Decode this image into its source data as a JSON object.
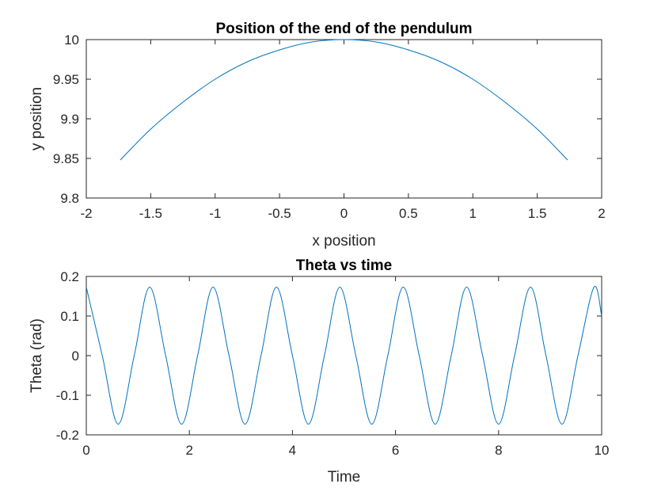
{
  "chart_data": [
    {
      "type": "line",
      "title": "Position of the end of the pendulum",
      "xlabel": "x position",
      "ylabel": "y position",
      "xlim": [
        -2,
        2
      ],
      "ylim": [
        9.8,
        10
      ],
      "x_ticks": [
        "-2",
        "-1.5",
        "-1",
        "-0.5",
        "0",
        "0.5",
        "1",
        "1.5",
        "2"
      ],
      "y_ticks": [
        "9.8",
        "9.85",
        "9.9",
        "9.95",
        "10"
      ],
      "grid": false,
      "color": "#0072BD",
      "series": [
        {
          "x": [
            -1.736,
            -1.5,
            -1.25,
            -1.0,
            -0.75,
            -0.5,
            -0.25,
            0,
            0.25,
            0.5,
            0.75,
            1.0,
            1.25,
            1.5,
            1.736
          ],
          "y": [
            9.848,
            9.887,
            9.921,
            9.95,
            9.972,
            9.987,
            9.997,
            10.0,
            9.997,
            9.987,
            9.972,
            9.95,
            9.921,
            9.887,
            9.848
          ]
        }
      ]
    },
    {
      "type": "line",
      "title": "Theta vs time",
      "xlabel": "Time",
      "ylabel": "Theta (rad)",
      "xlim": [
        0,
        10
      ],
      "ylim": [
        -0.2,
        0.2
      ],
      "x_ticks": [
        "0",
        "2",
        "4",
        "6",
        "8",
        "10"
      ],
      "y_ticks": [
        "-0.2",
        "-0.1",
        "0",
        "0.1",
        "0.2"
      ],
      "grid": false,
      "color": "#0072BD",
      "series": [
        {
          "x": [
            0,
            0.31,
            0.62,
            0.93,
            1.23,
            1.54,
            1.85,
            2.16,
            2.46,
            2.77,
            3.08,
            3.39,
            3.69,
            4.0,
            4.31,
            4.62,
            4.92,
            5.23,
            5.54,
            5.85,
            6.15,
            6.46,
            6.77,
            7.08,
            7.38,
            7.69,
            8.0,
            8.31,
            8.62,
            8.92,
            9.23,
            9.54,
            9.85,
            10.0
          ],
          "y": [
            0.173,
            0.0,
            -0.173,
            0.0,
            0.173,
            0.0,
            -0.173,
            0.0,
            0.173,
            0.0,
            -0.173,
            0.0,
            0.173,
            0.0,
            -0.173,
            0.0,
            0.173,
            0.0,
            -0.173,
            0.0,
            0.173,
            0.0,
            -0.173,
            0.0,
            0.173,
            0.0,
            -0.173,
            0.0,
            0.173,
            0.0,
            -0.173,
            0.0,
            0.173,
            0.1
          ]
        }
      ]
    }
  ]
}
